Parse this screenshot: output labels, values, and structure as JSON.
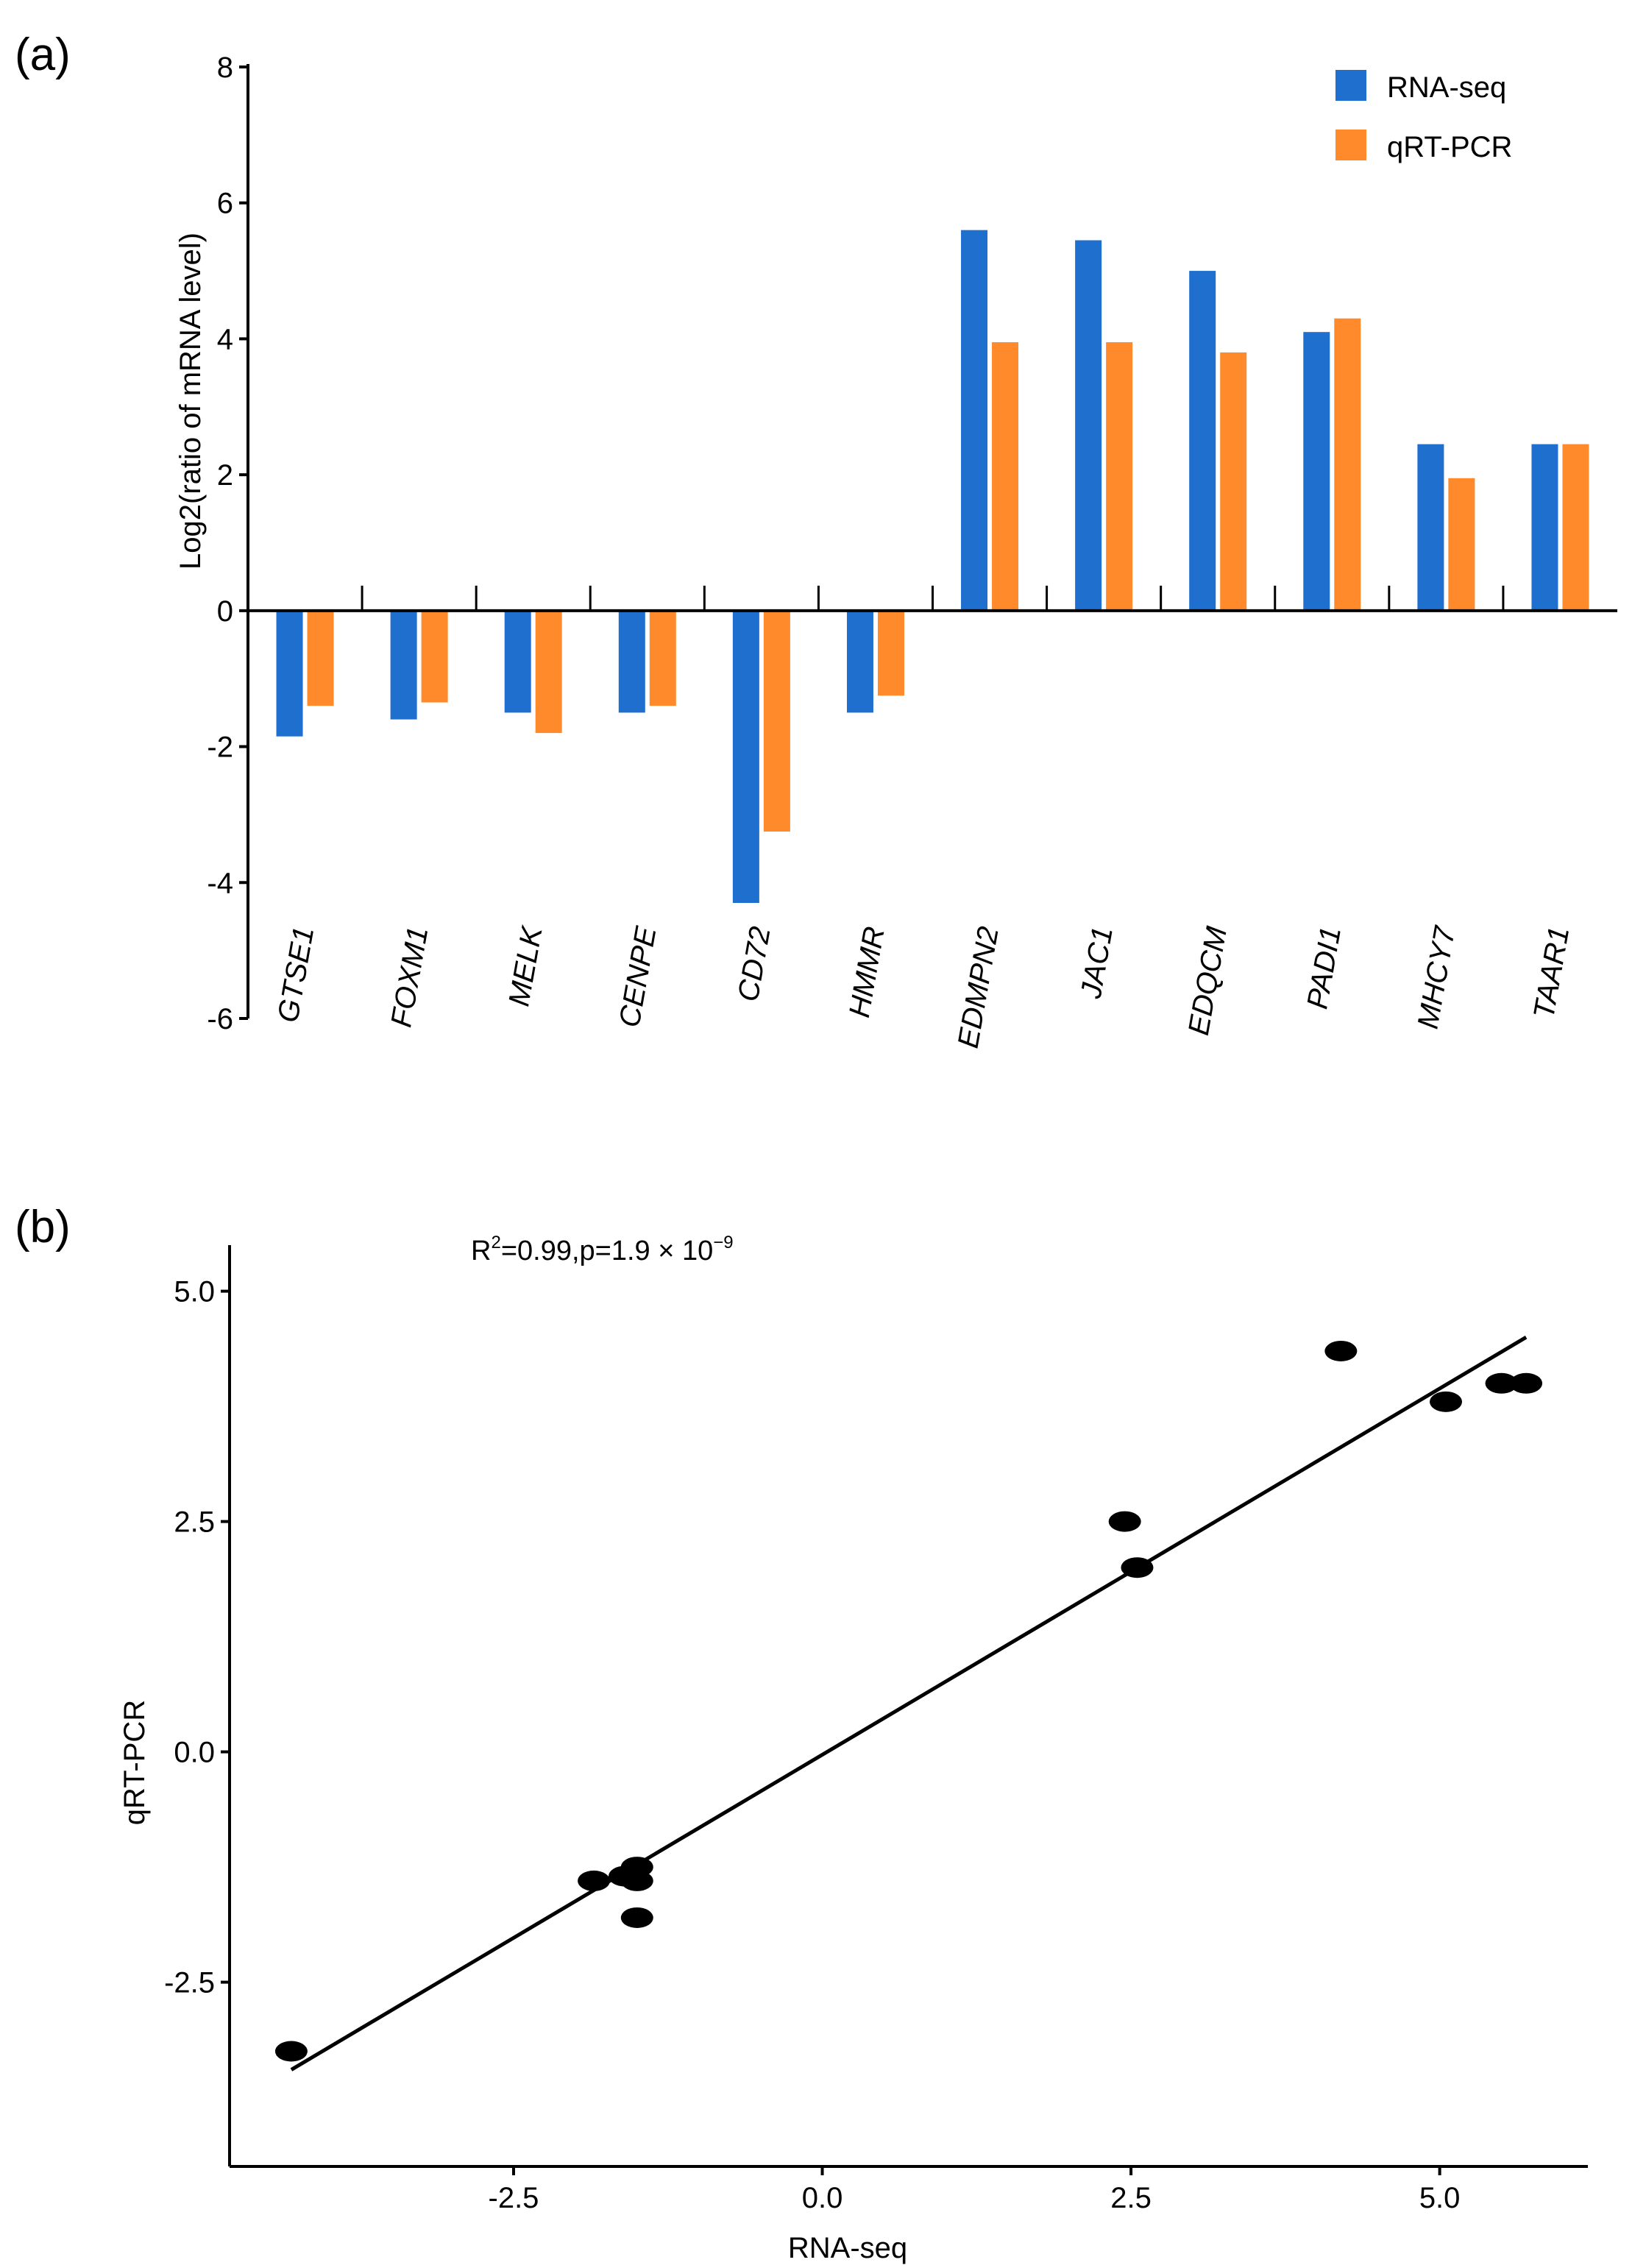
{
  "chart_data": [
    {
      "panel": "(a)",
      "type": "bar",
      "ylabel": "Log2(ratio of mRNA level)",
      "ylim": [
        -6,
        8
      ],
      "yticks": [
        8,
        6,
        4,
        2,
        0,
        -2,
        -4,
        -6
      ],
      "ytick_labels": [
        "8",
        "6",
        "4",
        "2",
        "0",
        "-2",
        "-4",
        "-6"
      ],
      "categories": [
        "GTSE1",
        "FOXM1",
        "MELK",
        "CENPE",
        "CD72",
        "HMMR",
        "EDMPN2",
        "JAC1",
        "EDQCM",
        "PADI1",
        "MHCY7",
        "TAAR1"
      ],
      "series": [
        {
          "name": "RNA-seq",
          "color": "#1f6fcf",
          "values": [
            -1.85,
            -1.6,
            -1.5,
            -1.5,
            -4.3,
            -1.5,
            5.6,
            5.45,
            5.0,
            4.1,
            2.45,
            2.45
          ]
        },
        {
          "name": "qRT-PCR",
          "color": "#ff8a2b",
          "values": [
            -1.4,
            -1.35,
            -1.8,
            -1.4,
            -3.25,
            -1.25,
            3.95,
            3.95,
            3.8,
            4.3,
            1.95,
            2.45
          ]
        }
      ],
      "legend": "top-right"
    },
    {
      "panel": "(b)",
      "type": "scatter",
      "xlabel": "RNA-seq",
      "ylabel": "qRT-PCR",
      "xlim": [
        -4.8,
        6.2
      ],
      "ylim": [
        -4.5,
        5.5
      ],
      "xticks": [
        -2.5,
        0.0,
        2.5,
        5.0
      ],
      "xtick_labels": [
        "-2.5",
        "0.0",
        "2.5",
        "5.0"
      ],
      "yticks": [
        5.0,
        2.5,
        0.0,
        -2.5
      ],
      "ytick_labels": [
        "5.0",
        "2.5",
        "0.0",
        "-2.5"
      ],
      "annotation_base": "R",
      "annotation_sup": "2",
      "annotation_mid": "=0.99,p=1.9 × 10",
      "annotation_exp": "−9",
      "points": [
        {
          "x": -4.3,
          "y": -3.25
        },
        {
          "x": -1.85,
          "y": -1.4
        },
        {
          "x": -1.6,
          "y": -1.35
        },
        {
          "x": -1.5,
          "y": -1.8
        },
        {
          "x": -1.5,
          "y": -1.4
        },
        {
          "x": -1.5,
          "y": -1.25
        },
        {
          "x": 2.45,
          "y": 2.5
        },
        {
          "x": 2.55,
          "y": 2.0
        },
        {
          "x": 4.2,
          "y": 4.35
        },
        {
          "x": 5.05,
          "y": 3.8
        },
        {
          "x": 5.5,
          "y": 4.0
        },
        {
          "x": 5.7,
          "y": 4.0
        }
      ],
      "fit_line": {
        "x": [
          -4.3,
          5.7
        ],
        "y": [
          -3.45,
          4.5
        ]
      }
    }
  ]
}
